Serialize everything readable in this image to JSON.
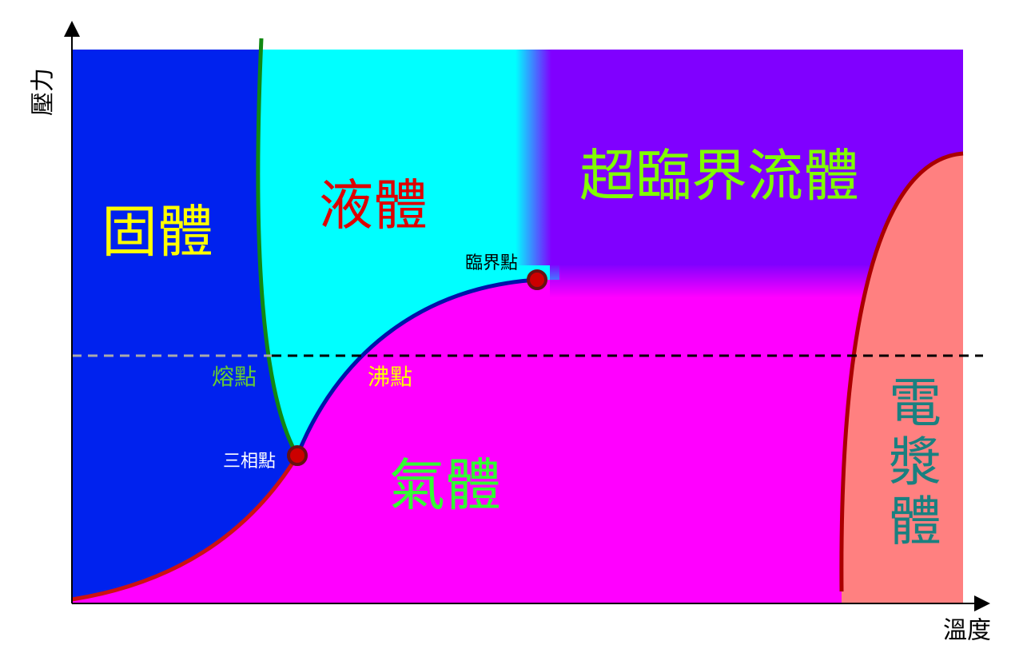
{
  "axes": {
    "y_label": "壓力",
    "x_label": "溫度"
  },
  "regions": {
    "solid": "固體",
    "liquid": "液體",
    "supercritical": "超臨界流體",
    "gas": "氣體",
    "plasma": "電漿體"
  },
  "points": {
    "triple": "三相點",
    "critical": "臨界點",
    "melting": "熔點",
    "boiling": "沸點"
  }
}
